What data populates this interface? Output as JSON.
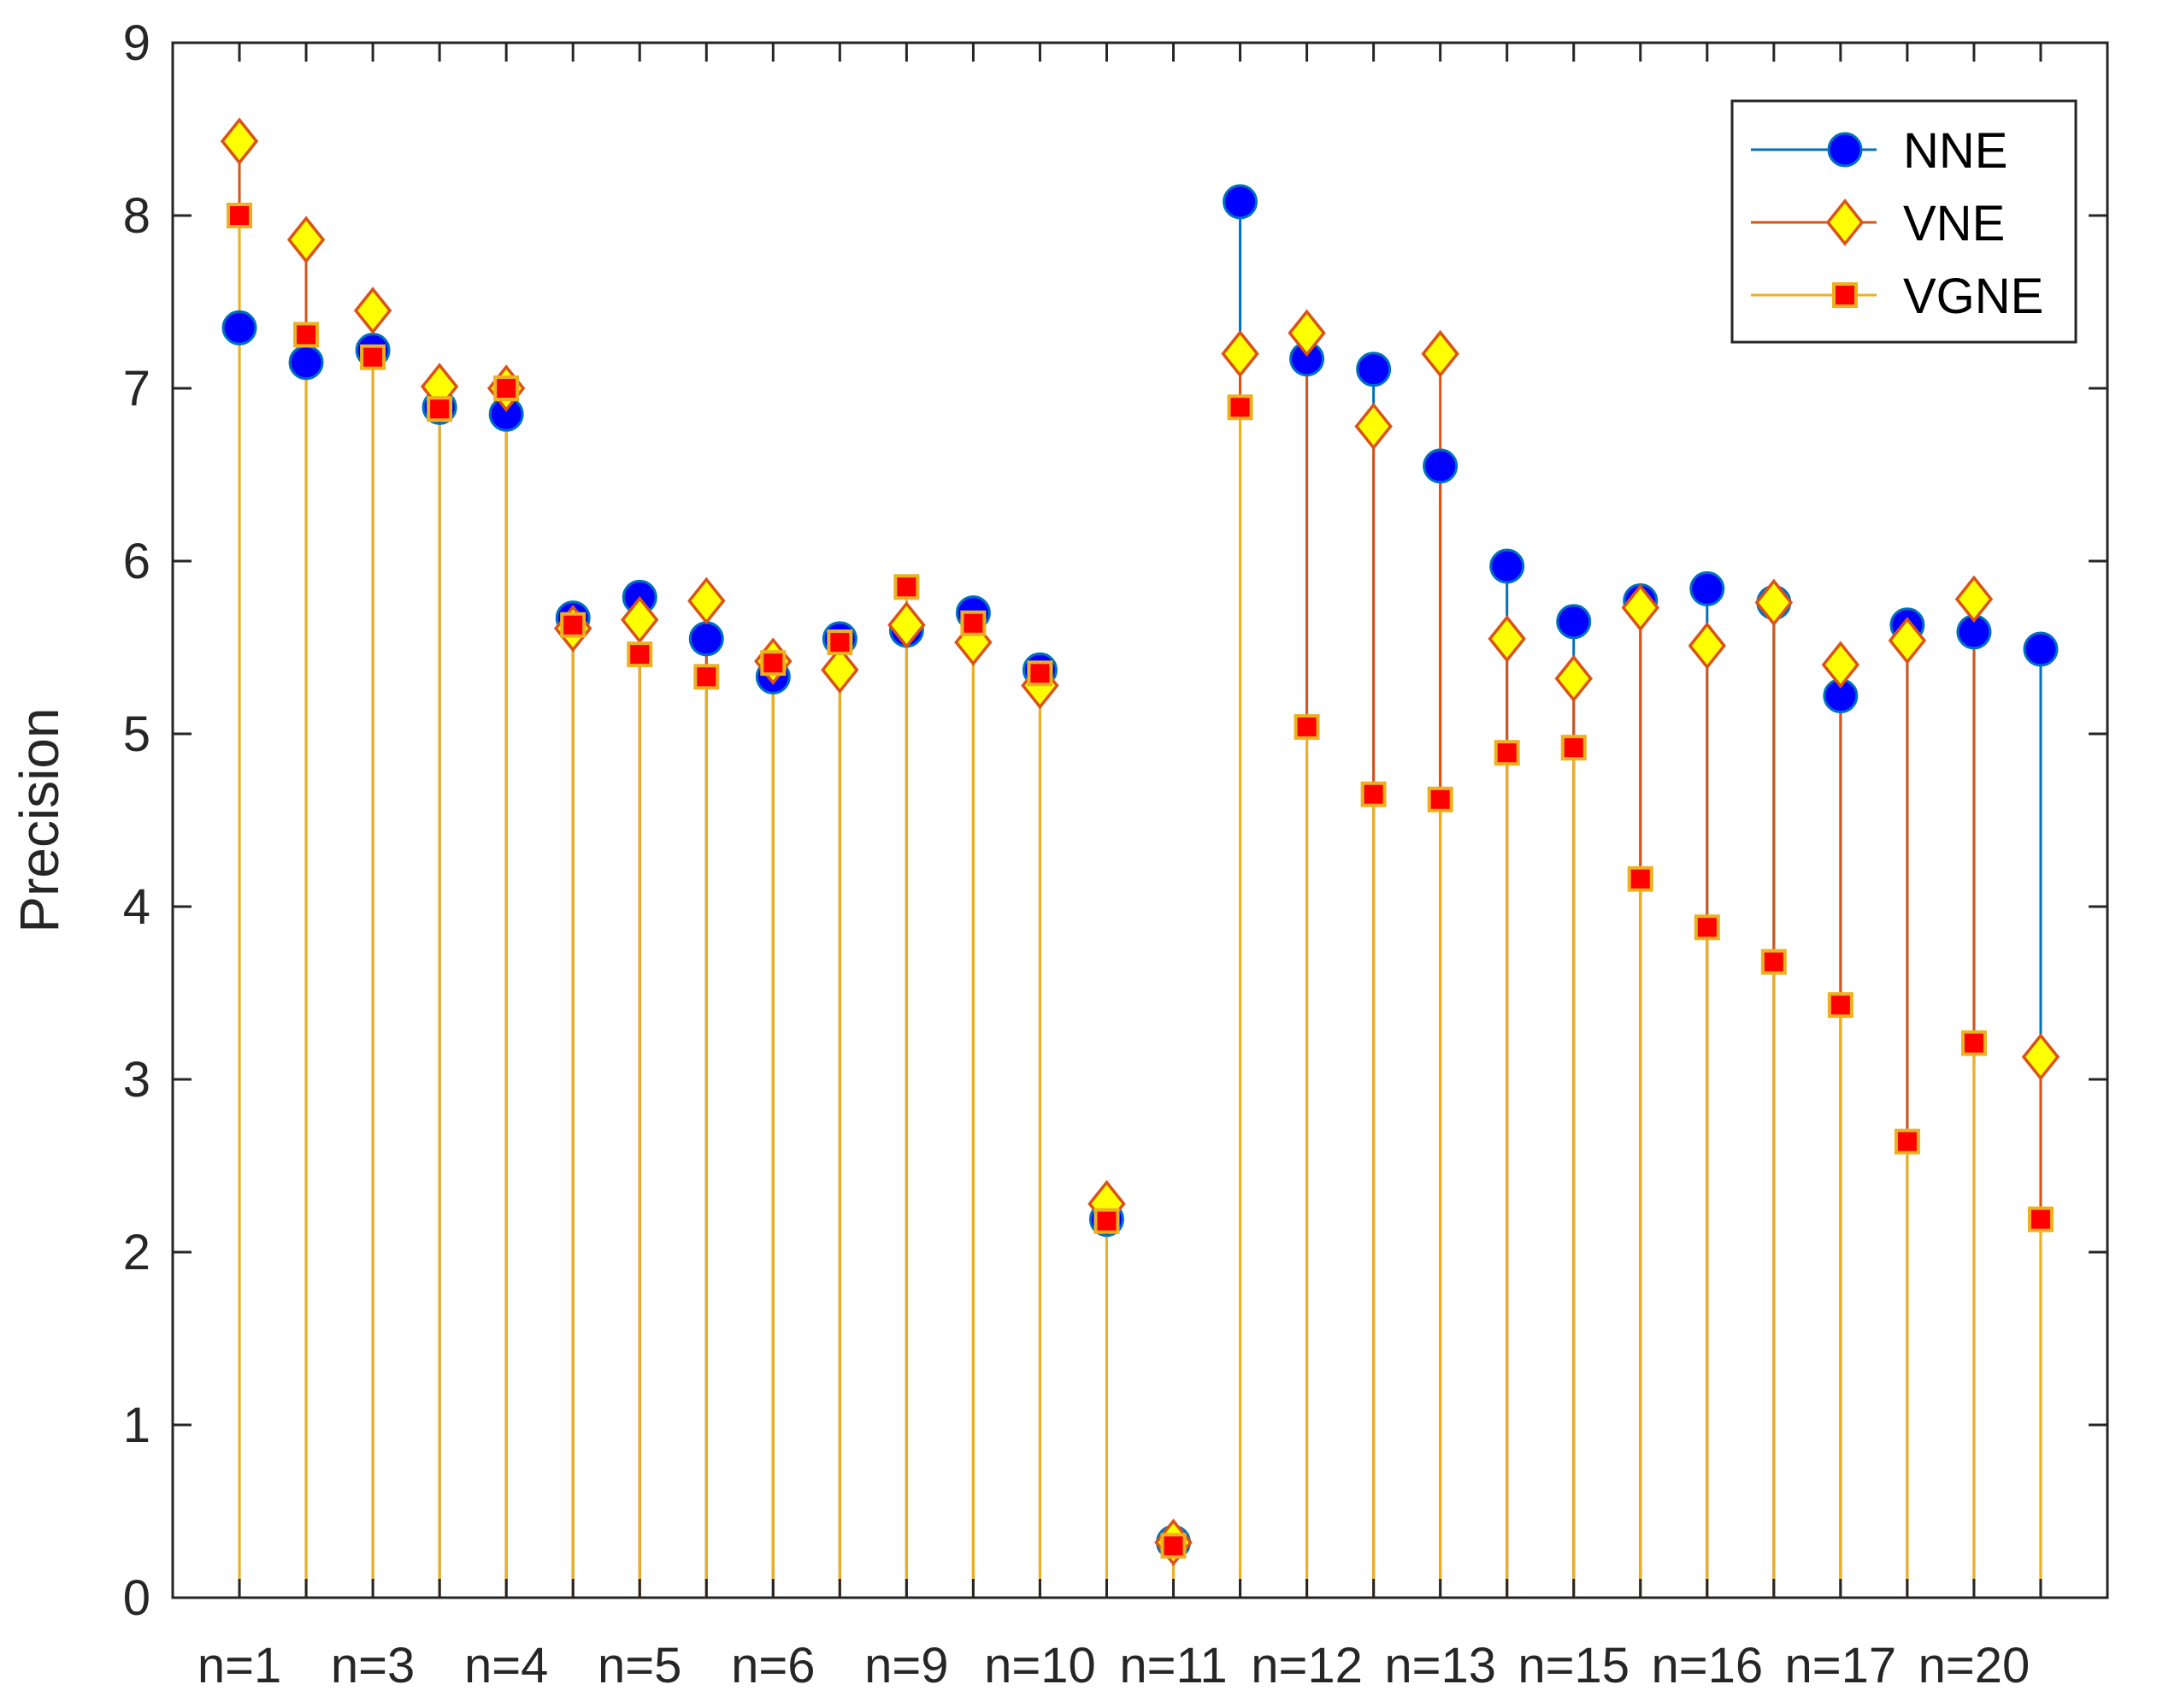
{
  "chart_data": {
    "type": "stem",
    "title": "",
    "xlabel": "",
    "ylabel": "Precision",
    "ylim": [
      0,
      9
    ],
    "yticks": [
      0,
      1,
      2,
      3,
      4,
      5,
      6,
      7,
      8,
      9
    ],
    "x": [
      1,
      2,
      3,
      4,
      5,
      6,
      7,
      8,
      9,
      10,
      11,
      12,
      13,
      14,
      15,
      16,
      17,
      18,
      19,
      20,
      21,
      22,
      23,
      24,
      25,
      26,
      27,
      28
    ],
    "xlim": [
      0,
      29
    ],
    "xtick_positions": [
      1,
      3,
      5,
      7,
      9,
      11,
      13,
      15,
      17,
      19,
      21,
      23,
      25,
      27
    ],
    "xtick_labels": [
      "n=1",
      "n=3",
      "n=4",
      "n=5",
      "n=6",
      "n=9",
      "n=10",
      "n=11",
      "n=12",
      "n=13",
      "n=15",
      "n=16",
      "n=17",
      "n=20"
    ],
    "legend_position": "top-right",
    "series": [
      {
        "name": "NNE",
        "color": "#0072BD",
        "marker": "circle",
        "marker_fill": "#0000FF",
        "values": [
          7.35,
          7.15,
          7.22,
          6.89,
          6.85,
          5.67,
          5.79,
          5.55,
          5.33,
          5.55,
          5.6,
          5.7,
          5.37,
          2.19,
          0.32,
          8.08,
          7.17,
          7.11,
          6.55,
          5.97,
          5.65,
          5.77,
          5.84,
          5.76,
          5.22,
          5.63,
          5.59,
          5.49
        ]
      },
      {
        "name": "VNE",
        "color": "#D95319",
        "marker": "diamond",
        "marker_fill": "#FFFF00",
        "values": [
          8.43,
          7.86,
          7.45,
          7.01,
          7.0,
          5.61,
          5.66,
          5.77,
          5.42,
          5.37,
          5.63,
          5.53,
          5.28,
          2.28,
          0.32,
          7.2,
          7.32,
          6.78,
          7.2,
          5.55,
          5.32,
          5.73,
          5.51,
          5.76,
          5.4,
          5.54,
          5.78,
          3.13
        ]
      },
      {
        "name": "VGNE",
        "color": "#EDB120",
        "marker": "square",
        "marker_fill": "#FF0000",
        "values": [
          8.0,
          7.31,
          7.18,
          6.88,
          7.0,
          5.63,
          5.46,
          5.33,
          5.41,
          5.53,
          5.85,
          5.64,
          5.35,
          2.18,
          0.3,
          6.89,
          5.04,
          4.65,
          4.62,
          4.89,
          4.92,
          4.16,
          3.88,
          3.68,
          3.43,
          2.64,
          3.21,
          2.19
        ]
      }
    ]
  }
}
